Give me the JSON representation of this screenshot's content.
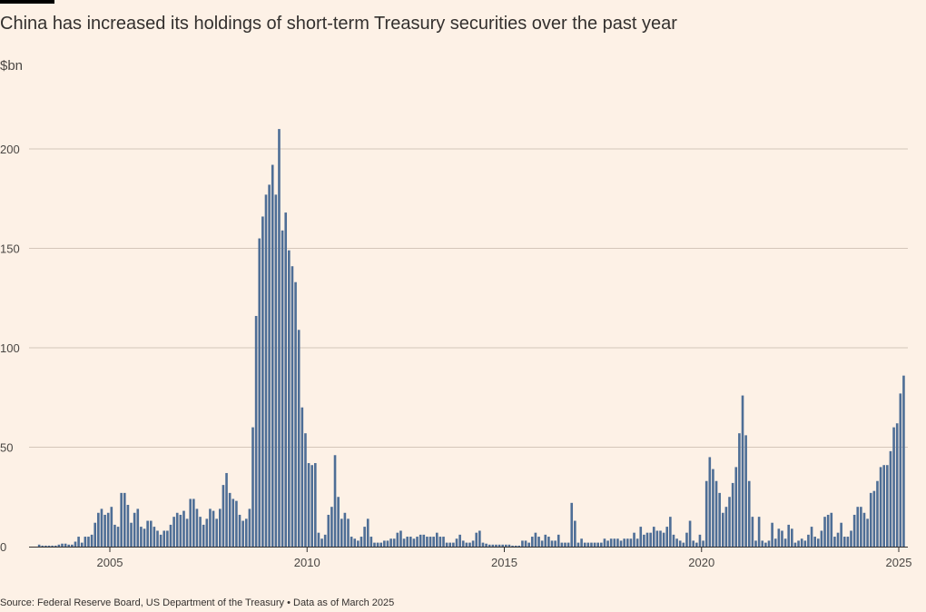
{
  "title": "China has increased its holdings of short-term Treasury securities over the past year",
  "unit_label": "$bn",
  "source": "Source: Federal Reserve Board, US Department of the Treasury • Data as of March 2025",
  "colors": {
    "bar": "#4e6e96",
    "grid": "#d4c6b9",
    "axis": "#33302e",
    "background": "#fdf1e6"
  },
  "chart_data": {
    "type": "bar",
    "ylabel": "$bn",
    "ylim": [
      0,
      210
    ],
    "yticks": [
      0,
      50,
      100,
      150,
      200
    ],
    "xticks": [
      2005,
      2010,
      2015,
      2020,
      2025
    ],
    "start": "2003-03",
    "frequency": "monthly",
    "grid": true,
    "values": [
      1,
      0.5,
      0.5,
      0.5,
      0.5,
      0.5,
      1,
      1.5,
      1.5,
      1,
      1,
      2.5,
      5,
      2,
      5,
      5,
      6,
      12,
      17,
      19,
      16,
      17,
      20,
      11,
      10,
      27,
      27,
      21,
      12,
      17,
      19,
      10,
      9,
      13,
      13,
      10,
      8,
      6,
      8,
      8,
      11,
      15,
      17,
      16,
      18,
      14,
      24,
      24,
      19,
      15,
      11,
      14,
      19,
      18,
      14,
      19,
      31,
      37,
      27,
      24,
      23,
      16,
      13,
      14,
      19,
      60,
      116,
      155,
      166,
      177,
      182,
      192,
      177,
      210,
      159,
      168,
      149,
      141,
      133,
      109,
      70,
      57,
      42,
      41,
      42,
      7,
      4,
      6,
      16,
      20,
      46,
      25,
      14,
      17,
      14,
      5,
      4,
      3,
      5,
      10,
      14,
      5,
      2,
      2,
      2,
      3,
      3,
      4,
      4,
      7,
      8,
      4,
      5,
      5,
      4,
      5,
      6,
      6,
      5,
      5,
      5,
      7,
      5,
      5,
      2,
      2,
      2,
      4,
      6,
      3,
      2,
      2,
      3,
      7,
      8,
      2,
      1.5,
      1,
      1,
      1,
      1,
      1,
      1,
      1,
      0.5,
      0.5,
      0.5,
      3,
      3,
      2,
      5,
      7,
      5,
      3,
      6,
      5,
      3,
      3,
      6,
      2,
      2,
      2,
      22,
      13,
      2,
      4,
      2,
      2,
      2,
      2,
      2,
      2,
      4,
      3,
      4,
      4,
      4,
      3,
      4,
      4,
      4,
      7,
      4,
      10,
      6,
      7,
      7,
      10,
      8,
      8,
      7,
      10,
      15,
      6,
      4,
      3,
      2,
      7,
      13,
      3,
      2,
      6,
      3,
      33,
      45,
      39,
      33,
      27,
      17,
      20,
      25,
      32,
      40,
      57,
      76,
      56,
      33,
      15,
      3,
      15,
      3,
      2,
      3,
      12,
      4,
      9,
      8,
      4,
      11,
      9,
      2,
      3,
      4,
      3,
      6,
      10,
      5,
      4,
      8,
      15,
      16,
      17,
      5,
      7,
      12,
      5,
      5,
      8,
      16,
      20,
      20,
      17,
      14,
      27,
      28,
      33,
      40,
      41,
      41,
      48,
      60,
      62,
      77,
      86
    ]
  }
}
